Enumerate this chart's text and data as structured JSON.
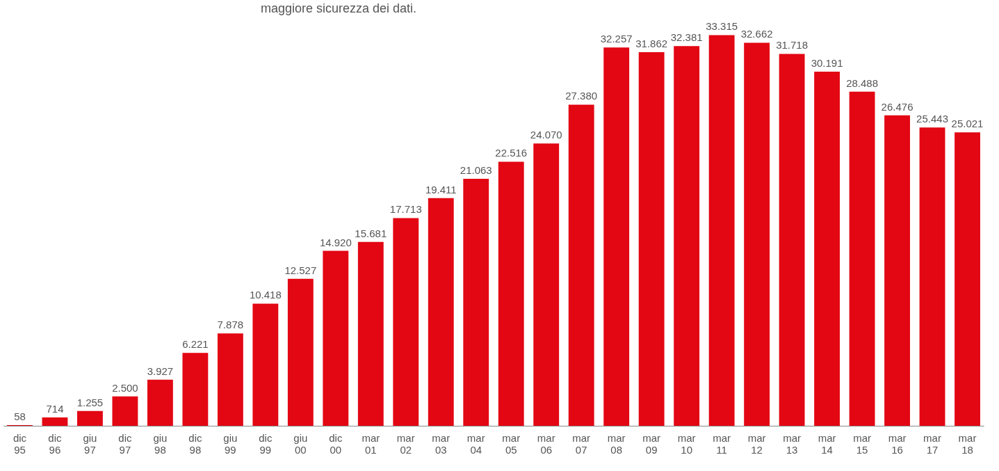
{
  "chart_data": {
    "type": "bar",
    "title": "maggiore sicurezza dei dati.",
    "categories": [
      "dic 95",
      "dic 96",
      "giu 97",
      "dic 97",
      "giu 98",
      "dic 98",
      "giu 99",
      "dic 99",
      "giu 00",
      "dic 00",
      "mar 01",
      "mar 02",
      "mar 03",
      "mar 04",
      "mar 05",
      "mar 06",
      "mar 07",
      "mar 08",
      "mar 09",
      "mar 10",
      "mar 11",
      "mar 12",
      "mar 13",
      "mar 14",
      "mar 15",
      "mar 16",
      "mar 17",
      "mar 18"
    ],
    "values": [
      58,
      714,
      1255,
      2500,
      3927,
      6221,
      7878,
      10418,
      12527,
      14920,
      15681,
      17713,
      19411,
      21063,
      22516,
      24070,
      27380,
      32257,
      31862,
      32381,
      33315,
      32662,
      31718,
      30191,
      28488,
      26476,
      25443,
      25021
    ],
    "value_labels": [
      "58",
      "714",
      "1.255",
      "2.500",
      "3.927",
      "6.221",
      "7.878",
      "10.418",
      "12.527",
      "14.920",
      "15.681",
      "17.713",
      "19.411",
      "21.063",
      "22.516",
      "24.070",
      "27.380",
      "32.257",
      "31.862",
      "32.381",
      "33.315",
      "32.662",
      "31.718",
      "30.191",
      "28.488",
      "26.476",
      "25.443",
      "25.021"
    ],
    "color": "#e30613",
    "tick_labels": "x"
  }
}
